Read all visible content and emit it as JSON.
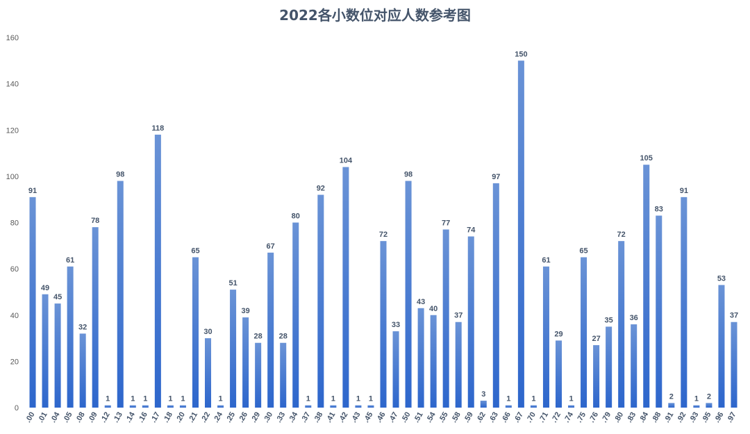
{
  "chart_data": {
    "type": "bar",
    "title": "2022各小数位对应人数参考图",
    "xlabel": "",
    "ylabel": "",
    "ylim": [
      0,
      160
    ],
    "yticks": [
      0,
      20,
      40,
      60,
      80,
      100,
      120,
      140,
      160
    ],
    "grid": false,
    "legend": "none",
    "bar_color_top": "#6a93d6",
    "bar_color_bottom": "#2d66cc",
    "categories": [
      ".00",
      ".01",
      ".04",
      ".05",
      ".08",
      ".09",
      ".12",
      ".13",
      ".14",
      ".16",
      ".17",
      ".18",
      ".20",
      ".21",
      ".22",
      ".24",
      ".25",
      ".26",
      ".29",
      ".30",
      ".33",
      ".34",
      ".37",
      ".38",
      ".41",
      ".42",
      ".43",
      ".45",
      ".46",
      ".47",
      ".50",
      ".51",
      ".54",
      ".55",
      ".58",
      ".59",
      ".62",
      ".63",
      ".66",
      ".67",
      ".70",
      ".71",
      ".72",
      ".74",
      ".75",
      ".76",
      ".79",
      ".80",
      ".83",
      ".84",
      ".88",
      ".91",
      ".92",
      ".93",
      ".95",
      ".96",
      ".97"
    ],
    "values": [
      91,
      49,
      45,
      61,
      32,
      78,
      1,
      98,
      1,
      1,
      118,
      1,
      1,
      65,
      30,
      1,
      51,
      39,
      28,
      67,
      28,
      80,
      1,
      92,
      1,
      104,
      1,
      1,
      72,
      33,
      98,
      43,
      40,
      77,
      37,
      74,
      3,
      97,
      1,
      150,
      1,
      61,
      29,
      1,
      65,
      27,
      35,
      72,
      36,
      105,
      83,
      2,
      91,
      1,
      2,
      53,
      37
    ]
  }
}
